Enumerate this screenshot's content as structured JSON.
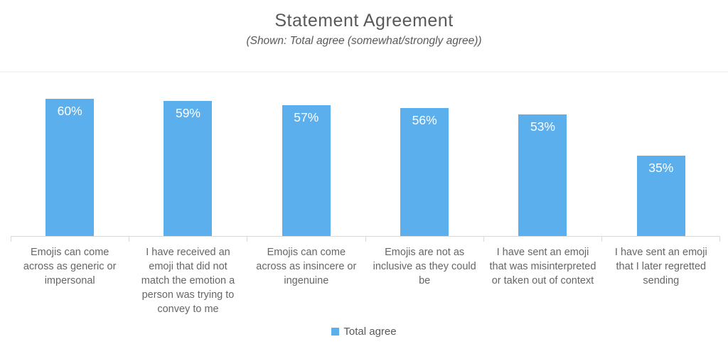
{
  "chart_data": {
    "type": "bar",
    "title": "Statement Agreement",
    "subtitle": "(Shown: Total agree (somewhat/strongly agree))",
    "series_name": "Total agree",
    "categories": [
      "Emojis can come across as generic or impersonal",
      "I have received an emoji that did not match the emotion a person was trying to convey to me",
      "Emojis can come across as insincere or ingenuine",
      "Emojis are not as inclusive as they could be",
      "I have sent an emoji that was misinterpreted or taken out of context",
      "I have sent an emoji that I later regretted sending"
    ],
    "values": [
      60,
      59,
      57,
      56,
      53,
      35
    ],
    "value_labels": [
      "60%",
      "59%",
      "57%",
      "56%",
      "53%",
      "35%"
    ],
    "ylim": [
      0,
      100
    ],
    "grid": false,
    "legend_position": "bottom-center",
    "colors": {
      "bar": "#5bafec",
      "axis": "#d9d9d9",
      "title_text": "#595959",
      "category_text": "#666666",
      "value_label_text": "#ffffff"
    }
  }
}
